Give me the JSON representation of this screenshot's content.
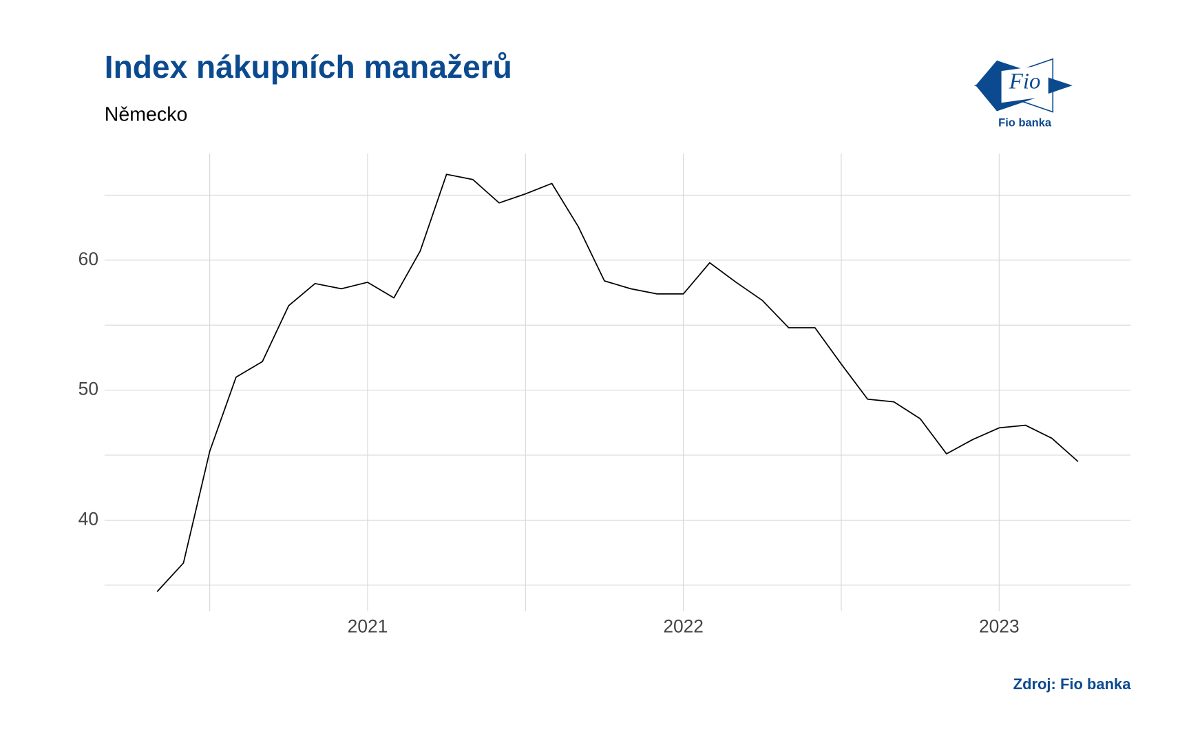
{
  "chart_data": {
    "type": "line",
    "title": "Index nákupních manažerů",
    "subtitle": "Německo",
    "source": "Zdroj: Fio banka",
    "logo": {
      "mark": "Fio",
      "caption": "Fio banka"
    },
    "x": [
      "2020-05",
      "2020-06",
      "2020-07",
      "2020-08",
      "2020-09",
      "2020-10",
      "2020-11",
      "2020-12",
      "2021-01",
      "2021-02",
      "2021-03",
      "2021-04",
      "2021-05",
      "2021-06",
      "2021-07",
      "2021-08",
      "2021-09",
      "2021-10",
      "2021-11",
      "2021-12",
      "2022-01",
      "2022-02",
      "2022-03",
      "2022-04",
      "2022-05",
      "2022-06",
      "2022-07",
      "2022-08",
      "2022-09",
      "2022-10",
      "2022-11",
      "2022-12",
      "2023-01",
      "2023-02",
      "2023-03",
      "2023-04"
    ],
    "values": [
      34.5,
      36.7,
      45.3,
      51.0,
      52.2,
      56.5,
      58.2,
      57.8,
      58.3,
      57.1,
      60.7,
      66.6,
      66.2,
      64.4,
      65.1,
      65.9,
      62.6,
      58.4,
      57.8,
      57.4,
      57.4,
      59.8,
      58.3,
      56.9,
      54.8,
      54.8,
      52.0,
      49.3,
      49.1,
      47.8,
      45.1,
      46.2,
      47.1,
      47.3,
      46.3,
      44.5
    ],
    "color": "#000000",
    "xlim": [
      "2020-03",
      "2023-06"
    ],
    "xticks": [
      {
        "value": "2021-01",
        "label": "2021"
      },
      {
        "value": "2022-01",
        "label": "2022"
      },
      {
        "value": "2023-01",
        "label": "2023"
      }
    ],
    "ylim": [
      33,
      68.2
    ],
    "yticks": [
      40,
      50,
      60
    ],
    "grid": true
  }
}
